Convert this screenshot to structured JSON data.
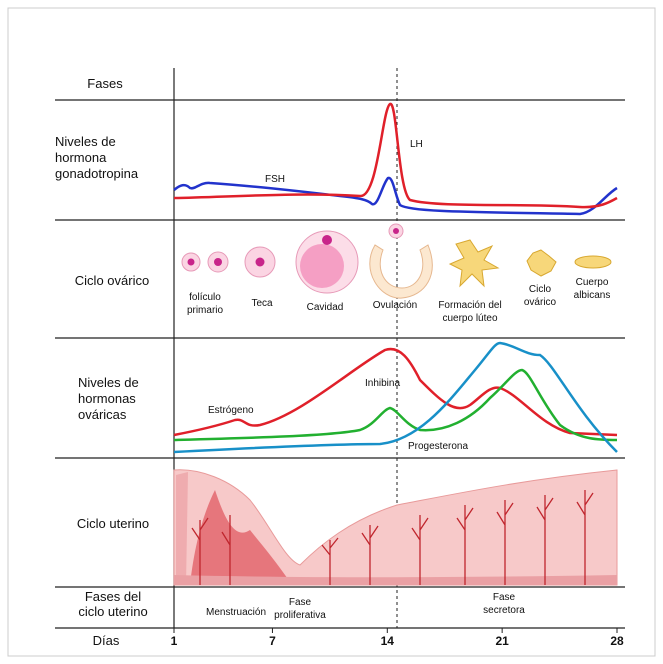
{
  "rows": {
    "phases": [
      "Fases"
    ],
    "gonadotropin": [
      "Niveles de",
      "hormona",
      "gonadotropina"
    ],
    "ovarian_cycle": [
      "Ciclo ovárico"
    ],
    "ovarian_hormones": [
      "Niveles de",
      "hormonas",
      "ováricas"
    ],
    "uterine_cycle": [
      "Ciclo uterino"
    ],
    "uterine_phases": [
      "Fases del",
      "ciclo uterino"
    ],
    "days": [
      "Días"
    ]
  },
  "hormone_labels": {
    "fsh": "FSH",
    "lh": "LH",
    "estrogen": "Estrógeno",
    "inhibin": "Inhibina",
    "progesterone": "Progesterona"
  },
  "ovarian_stages": [
    [
      "folículo",
      "primario"
    ],
    [
      "Teca"
    ],
    [
      "Cavidad"
    ],
    [
      "Ovulación"
    ],
    [
      "Formación del",
      "cuerpo lúteo"
    ],
    [
      "Ciclo",
      "ovárico"
    ],
    [
      "Cuerpo",
      "albicans"
    ]
  ],
  "uterine_phases": [
    [
      "Menstruación"
    ],
    [
      "Fase",
      "proliferativa"
    ],
    [
      "Fase",
      "secretora"
    ]
  ],
  "days": [
    1,
    7,
    14,
    21,
    28
  ]
}
